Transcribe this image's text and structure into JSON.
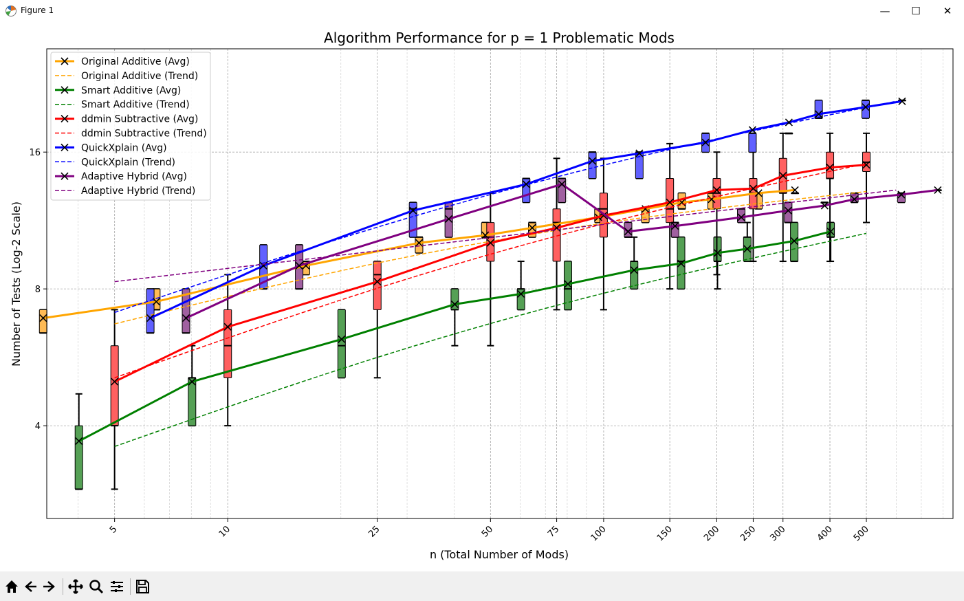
{
  "window": {
    "title": "Figure 1",
    "minimize_label": "—",
    "maximize_label": "☐",
    "close_label": "✕"
  },
  "toolbar": {
    "buttons": [
      {
        "name": "home-icon"
      },
      {
        "name": "back-icon"
      },
      {
        "name": "forward-icon"
      },
      {
        "name": "pan-icon"
      },
      {
        "name": "zoom-icon"
      },
      {
        "name": "configure-subplots-icon"
      },
      {
        "name": "save-icon"
      }
    ]
  },
  "chart_data": {
    "type": "line",
    "title": "Algorithm Performance for p = 1 Problematic Mods",
    "xlabel": "n (Total Number of Mods)",
    "ylabel": "Number of Tests (Log-2 Scale)",
    "x_scale": "log",
    "y_scale": "log2",
    "xlim": [
      3.3,
      850
    ],
    "ylim": [
      2.5,
      27
    ],
    "xticks": [
      5,
      10,
      25,
      50,
      75,
      100,
      150,
      200,
      250,
      300,
      400,
      500
    ],
    "yticks": [
      4,
      8,
      16
    ],
    "grid": true,
    "legend_position": "upper-left",
    "legend": [
      "Original Additive (Avg)",
      "Original Additive (Trend)",
      "Smart Additive (Avg)",
      "Smart Additive (Trend)",
      "ddmin Subtractive (Avg)",
      "ddmin Subtractive (Trend)",
      "QuickXplain (Avg)",
      "QuickXplain (Trend)",
      "Adaptive Hybrid (Avg)",
      "Adaptive Hybrid (Trend)"
    ],
    "series": [
      {
        "color": "#ffa500",
        "box_color": "#ffbb55",
        "offset": -0.19,
        "avg": [
          6.9,
          7.5,
          9.0,
          10.1,
          10.5,
          10.9,
          11.5,
          12.0,
          12.4,
          12.6,
          13.0,
          13.2
        ],
        "trend_x": [
          5,
          500
        ],
        "trend_y": [
          6.7,
          13.1
        ],
        "boxes": [
          {
            "q1": 6.4,
            "q3": 7.2,
            "med": 6.4,
            "wlo": 6.4,
            "whi": 7.2
          },
          {
            "q1": 7.2,
            "q3": 8.0,
            "med": 7.2,
            "wlo": 7.2,
            "whi": 8.0
          },
          {
            "q1": 8.6,
            "q3": 9.2,
            "med": 9.2,
            "wlo": 8.6,
            "whi": 9.2
          },
          {
            "q1": 9.6,
            "q3": 10.4,
            "med": 10.4,
            "wlo": 9.6,
            "whi": 10.4
          },
          {
            "q1": 10.4,
            "q3": 11.2,
            "med": 10.4,
            "wlo": 10.4,
            "whi": 11.2
          },
          {
            "q1": 10.4,
            "q3": 11.2,
            "med": 11.2,
            "wlo": 10.4,
            "whi": 11.2
          },
          {
            "q1": 11.2,
            "q3": 12.0,
            "med": 12.0,
            "wlo": 11.2,
            "whi": 12.0
          },
          {
            "q1": 11.2,
            "q3": 12.0,
            "med": 12.0,
            "wlo": 11.2,
            "whi": 12.0
          },
          {
            "q1": 12.0,
            "q3": 13.0,
            "med": 12.0,
            "wlo": 12.0,
            "whi": 13.0
          },
          {
            "q1": 12.0,
            "q3": 13.0,
            "med": 13.0,
            "wlo": 12.0,
            "whi": 13.0
          },
          {
            "q1": 12.0,
            "q3": 13.0,
            "med": 13.0,
            "wlo": 12.0,
            "whi": 13.0
          },
          {
            "q1": 13.0,
            "q3": 13.0,
            "med": 13.0,
            "wlo": 13.0,
            "whi": 13.0
          }
        ]
      },
      {
        "color": "#008000",
        "box_color": "#55a055",
        "offset": -0.095,
        "avg": [
          3.7,
          5.0,
          6.2,
          7.4,
          7.8,
          8.2,
          8.8,
          9.1,
          9.6,
          9.8,
          10.2,
          10.7
        ],
        "trend_x": [
          5,
          500
        ],
        "trend_y": [
          3.6,
          10.6
        ],
        "boxes": [
          {
            "q1": 2.9,
            "q3": 4.0,
            "med": 2.9,
            "wlo": 2.9,
            "whi": 4.7
          },
          {
            "q1": 4.0,
            "q3": 5.1,
            "med": 5.1,
            "wlo": 4.0,
            "whi": 6.0
          },
          {
            "q1": 5.1,
            "q3": 7.2,
            "med": 6.0,
            "wlo": 5.1,
            "whi": 7.2
          },
          {
            "q1": 7.2,
            "q3": 8.0,
            "med": 7.2,
            "wlo": 6.0,
            "whi": 8.0
          },
          {
            "q1": 7.2,
            "q3": 8.0,
            "med": 8.0,
            "wlo": 7.2,
            "whi": 9.2
          },
          {
            "q1": 7.2,
            "q3": 9.2,
            "med": 8.0,
            "wlo": 7.2,
            "whi": 9.2
          },
          {
            "q1": 8.0,
            "q3": 9.2,
            "med": 9.2,
            "wlo": 8.0,
            "whi": 10.4
          },
          {
            "q1": 8.0,
            "q3": 10.4,
            "med": 9.2,
            "wlo": 8.0,
            "whi": 10.4
          },
          {
            "q1": 9.2,
            "q3": 10.4,
            "med": 9.2,
            "wlo": 8.0,
            "whi": 10.4
          },
          {
            "q1": 9.2,
            "q3": 10.4,
            "med": 10.4,
            "wlo": 9.2,
            "whi": 11.2
          },
          {
            "q1": 9.2,
            "q3": 11.2,
            "med": 9.2,
            "wlo": 9.2,
            "whi": 11.2
          },
          {
            "q1": 10.4,
            "q3": 11.2,
            "med": 10.4,
            "wlo": 9.2,
            "whi": 11.2
          }
        ]
      },
      {
        "color": "#ff0000",
        "box_color": "#ff6060",
        "offset": 0.0,
        "avg": [
          5.0,
          6.6,
          8.3,
          10.1,
          10.9,
          11.6,
          12.4,
          13.2,
          13.3,
          14.2,
          14.8,
          15.0
        ],
        "trend_x": [
          5,
          500
        ],
        "trend_y": [
          5.1,
          15.1
        ],
        "boxes": [
          {
            "q1": 4.0,
            "q3": 6.0,
            "med": 4.0,
            "wlo": 2.9,
            "whi": 7.2
          },
          {
            "q1": 5.1,
            "q3": 7.2,
            "med": 6.0,
            "wlo": 4.0,
            "whi": 8.6
          },
          {
            "q1": 7.2,
            "q3": 9.2,
            "med": 8.6,
            "wlo": 5.1,
            "whi": 9.2
          },
          {
            "q1": 9.2,
            "q3": 11.2,
            "med": 10.4,
            "wlo": 6.0,
            "whi": 13.0
          },
          {
            "q1": 9.2,
            "q3": 12.0,
            "med": 11.2,
            "wlo": 7.2,
            "whi": 15.5
          },
          {
            "q1": 10.4,
            "q3": 13.0,
            "med": 12.0,
            "wlo": 7.2,
            "whi": 15.5
          },
          {
            "q1": 11.2,
            "q3": 14.0,
            "med": 12.0,
            "wlo": 8.0,
            "whi": 16.7
          },
          {
            "q1": 12.0,
            "q3": 14.0,
            "med": 13.0,
            "wlo": 8.6,
            "whi": 16.0
          },
          {
            "q1": 12.0,
            "q3": 14.0,
            "med": 13.0,
            "wlo": 9.2,
            "whi": 16.7
          },
          {
            "q1": 13.0,
            "q3": 15.5,
            "med": 13.0,
            "wlo": 9.2,
            "whi": 17.6
          },
          {
            "q1": 14.0,
            "q3": 16.0,
            "med": 14.0,
            "wlo": 9.2,
            "whi": 17.6
          },
          {
            "q1": 14.5,
            "q3": 16.0,
            "med": 15.2,
            "wlo": 11.2,
            "whi": 17.6
          }
        ]
      },
      {
        "color": "#0000ff",
        "box_color": "#6060ff",
        "offset": 0.095,
        "avg": [
          6.9,
          9.0,
          11.9,
          13.6,
          15.3,
          15.9,
          16.8,
          17.9,
          18.6,
          19.4,
          20.1,
          20.7
        ],
        "trend_x": [
          5,
          600
        ],
        "trend_y": [
          7.1,
          20.7
        ],
        "boxes": [
          {
            "q1": 6.4,
            "q3": 8.0,
            "med": 6.4,
            "wlo": 6.4,
            "whi": 8.0
          },
          {
            "q1": 8.0,
            "q3": 10.0,
            "med": 8.0,
            "wlo": 8.0,
            "whi": 10.0
          },
          {
            "q1": 10.4,
            "q3": 12.4,
            "med": 12.0,
            "wlo": 10.4,
            "whi": 12.4
          },
          {
            "q1": 12.4,
            "q3": 14.0,
            "med": 14.0,
            "wlo": 12.4,
            "whi": 14.0
          },
          {
            "q1": 14.0,
            "q3": 16.0,
            "med": 16.0,
            "wlo": 14.0,
            "whi": 16.0
          },
          {
            "q1": 14.0,
            "q3": 16.0,
            "med": 16.0,
            "wlo": 14.0,
            "whi": 16.0
          },
          {
            "q1": 16.0,
            "q3": 17.6,
            "med": 17.6,
            "wlo": 16.0,
            "whi": 17.6
          },
          {
            "q1": 16.0,
            "q3": 17.6,
            "med": 17.6,
            "wlo": 16.0,
            "whi": 17.6
          },
          {
            "q1": 17.6,
            "q3": 17.6,
            "med": 17.6,
            "wlo": 17.6,
            "whi": 17.6
          },
          {
            "q1": 19.0,
            "q3": 20.8,
            "med": 19.0,
            "wlo": 19.0,
            "whi": 20.8
          },
          {
            "q1": 19.0,
            "q3": 20.8,
            "med": 20.8,
            "wlo": 19.0,
            "whi": 20.8
          },
          {
            "q1": 20.8,
            "q3": 20.8,
            "med": 20.8,
            "wlo": 20.8,
            "whi": 20.8
          }
        ]
      },
      {
        "color": "#800080",
        "box_color": "#a060a0",
        "offset": 0.19,
        "avg": [
          6.9,
          9.0,
          11.4,
          13.6,
          10.7,
          11.0,
          11.5,
          11.9,
          12.2,
          12.6,
          12.9,
          13.2
        ],
        "trend_x": [
          5,
          600
        ],
        "trend_y": [
          8.3,
          13.2
        ],
        "boxes": [
          {
            "q1": 6.4,
            "q3": 8.0,
            "med": 6.4,
            "wlo": 6.4,
            "whi": 8.0
          },
          {
            "q1": 8.0,
            "q3": 10.0,
            "med": 8.0,
            "wlo": 8.0,
            "whi": 10.0
          },
          {
            "q1": 10.4,
            "q3": 12.4,
            "med": 12.0,
            "wlo": 10.4,
            "whi": 12.4
          },
          {
            "q1": 12.4,
            "q3": 14.0,
            "med": 14.0,
            "wlo": 12.4,
            "whi": 14.0
          },
          {
            "q1": 10.4,
            "q3": 11.2,
            "med": 10.4,
            "wlo": 10.4,
            "whi": 11.2
          },
          {
            "q1": 10.4,
            "q3": 11.2,
            "med": 11.2,
            "wlo": 10.4,
            "whi": 11.2
          },
          {
            "q1": 11.2,
            "q3": 12.0,
            "med": 12.0,
            "wlo": 11.2,
            "whi": 12.0
          },
          {
            "q1": 11.2,
            "q3": 12.4,
            "med": 11.2,
            "wlo": 11.2,
            "whi": 12.4
          },
          {
            "q1": 12.4,
            "q3": 12.4,
            "med": 12.4,
            "wlo": 12.4,
            "whi": 12.4
          },
          {
            "q1": 12.4,
            "q3": 13.0,
            "med": 13.0,
            "wlo": 12.4,
            "whi": 13.0
          },
          {
            "q1": 12.4,
            "q3": 13.0,
            "med": 13.0,
            "wlo": 12.4,
            "whi": 13.0
          },
          {
            "q1": 13.2,
            "q3": 13.2,
            "med": 13.2,
            "wlo": 13.2,
            "whi": 13.2
          }
        ]
      }
    ]
  }
}
